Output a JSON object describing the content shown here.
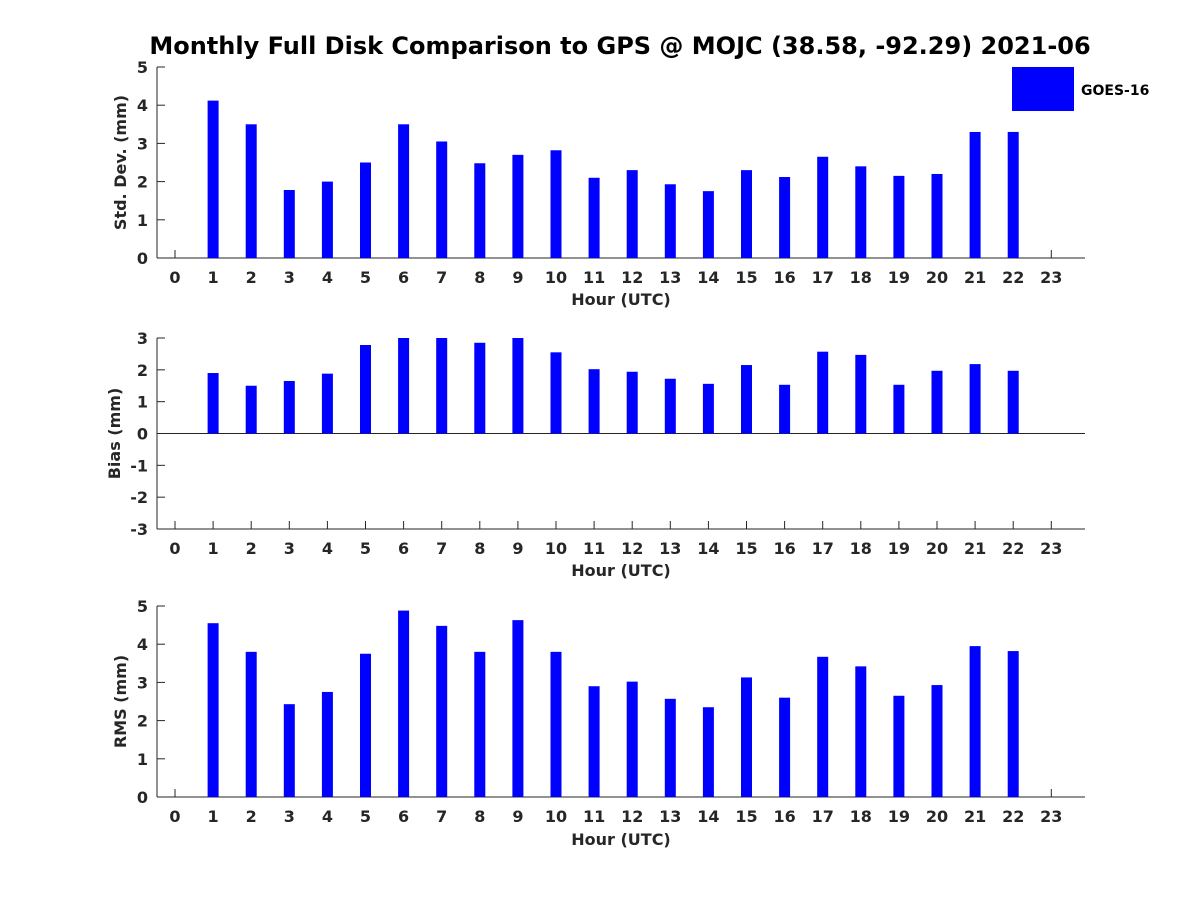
{
  "chart_data": {
    "title": "Monthly Full Disk Comparison to GPS @ MOJC (38.58, -92.29) 2021-06",
    "legend": {
      "label": "GOES-16",
      "color": "#0000ff",
      "placement": "top-right"
    },
    "hours": [
      0,
      1,
      2,
      3,
      4,
      5,
      6,
      7,
      8,
      9,
      10,
      11,
      12,
      13,
      14,
      15,
      16,
      17,
      18,
      19,
      20,
      21,
      22,
      23
    ],
    "panels": [
      {
        "type": "bar",
        "id": "std-dev",
        "ylabel": "Std. Dev. (mm)",
        "xlabel": "Hour (UTC)",
        "ylim": [
          0,
          5
        ],
        "yticks": [
          0,
          1,
          2,
          3,
          4,
          5
        ],
        "series": [
          {
            "name": "GOES-16",
            "values": [
              null,
              4.12,
              3.5,
              1.78,
              2.0,
              2.5,
              3.5,
              3.05,
              2.48,
              2.7,
              2.82,
              2.1,
              2.3,
              1.93,
              1.75,
              2.3,
              2.12,
              2.65,
              2.4,
              2.15,
              2.2,
              3.3,
              3.3,
              null
            ]
          }
        ]
      },
      {
        "type": "bar",
        "id": "bias",
        "ylabel": "Bias (mm)",
        "xlabel": "Hour (UTC)",
        "ylim": [
          -3,
          3
        ],
        "yticks": [
          3,
          2,
          1,
          0,
          -1,
          -2,
          -3
        ],
        "series": [
          {
            "name": "GOES-16",
            "values": [
              null,
              1.9,
              1.5,
              1.65,
              1.88,
              2.78,
              3.0,
              3.0,
              2.85,
              3.0,
              2.55,
              2.02,
              1.94,
              1.72,
              1.56,
              2.15,
              1.53,
              2.57,
              2.47,
              1.53,
              1.97,
              2.18,
              1.97,
              null
            ]
          }
        ]
      },
      {
        "type": "bar",
        "id": "rms",
        "ylabel": "RMS (mm)",
        "xlabel": "Hour (UTC)",
        "ylim": [
          0,
          5
        ],
        "yticks": [
          0,
          1,
          2,
          3,
          4,
          5
        ],
        "series": [
          {
            "name": "GOES-16",
            "values": [
              null,
              4.55,
              3.8,
              2.43,
              2.75,
              3.75,
              4.88,
              4.48,
              3.8,
              4.63,
              3.8,
              2.9,
              3.02,
              2.57,
              2.35,
              3.13,
              2.6,
              3.67,
              3.42,
              2.65,
              2.93,
              3.95,
              3.82,
              null
            ]
          }
        ]
      }
    ]
  }
}
